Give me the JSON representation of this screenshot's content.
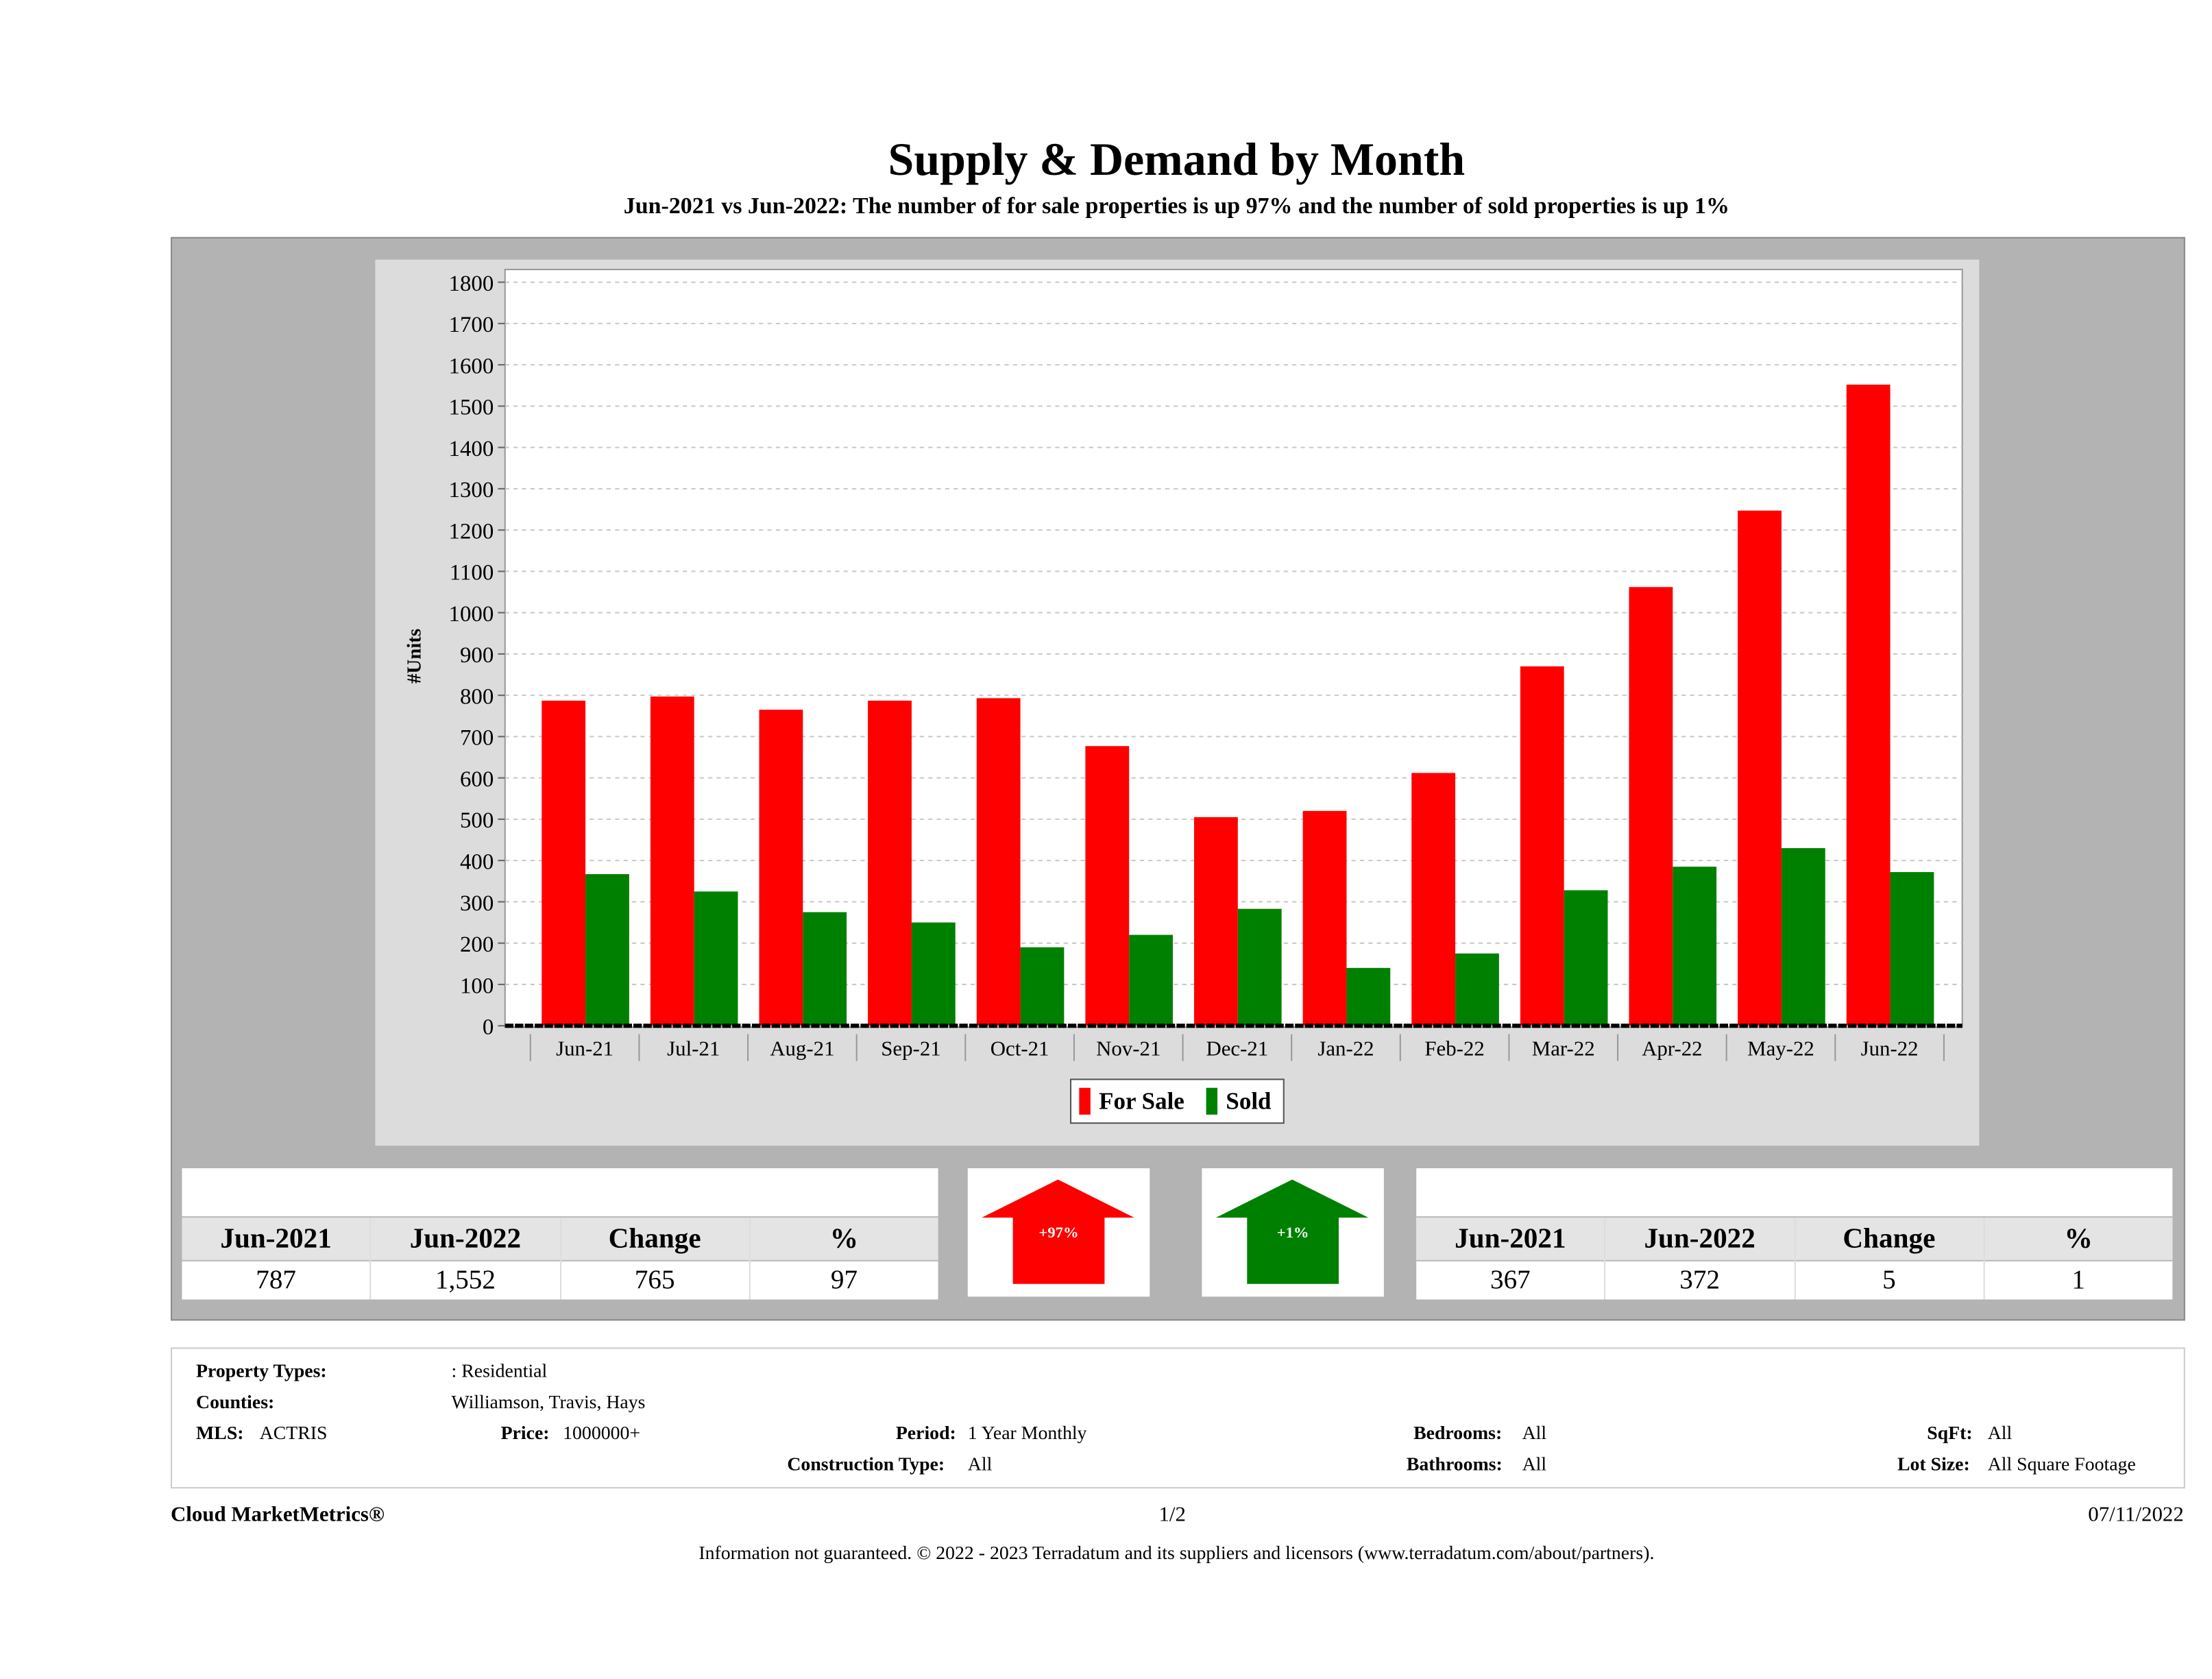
{
  "header": {
    "title": "Supply & Demand by Month",
    "subtitle": "Jun-2021 vs Jun-2022: The number of for sale properties is up 97% and the number of sold properties is up 1%"
  },
  "chart_data": {
    "type": "bar",
    "title": "Supply & Demand by Month",
    "xlabel": "",
    "ylabel": "#Units",
    "ylim": [
      0,
      1800
    ],
    "yticks": [
      0,
      100,
      200,
      300,
      400,
      500,
      600,
      700,
      800,
      900,
      1000,
      1100,
      1200,
      1300,
      1400,
      1500,
      1600,
      1700,
      1800
    ],
    "grid": true,
    "legend_position": "bottom",
    "categories": [
      "Jun-21",
      "Jul-21",
      "Aug-21",
      "Sep-21",
      "Oct-21",
      "Nov-21",
      "Dec-21",
      "Jan-22",
      "Feb-22",
      "Mar-22",
      "Apr-22",
      "May-22",
      "Jun-22"
    ],
    "series": [
      {
        "name": "For Sale",
        "color": "#ff0000",
        "values": [
          787,
          797,
          765,
          787,
          793,
          677,
          505,
          520,
          612,
          870,
          1062,
          1247,
          1552
        ]
      },
      {
        "name": "Sold",
        "color": "#008000",
        "values": [
          367,
          325,
          275,
          250,
          190,
          220,
          283,
          140,
          175,
          328,
          385,
          430,
          372
        ]
      }
    ]
  },
  "for_sale_table": {
    "headers": [
      "Jun-2021",
      "Jun-2022",
      "Change",
      "%"
    ],
    "values": [
      "787",
      "1,552",
      "765",
      "97"
    ]
  },
  "sold_table": {
    "headers": [
      "Jun-2021",
      "Jun-2022",
      "Change",
      "%"
    ],
    "values": [
      "367",
      "372",
      "5",
      "1"
    ]
  },
  "arrows": {
    "for_sale": {
      "label": "+97%",
      "color": "#ff0000"
    },
    "sold": {
      "label": "+1%",
      "color": "#008000"
    }
  },
  "info": {
    "property_types_label": "Property Types:",
    "property_types": ": Residential",
    "counties_label": "Counties:",
    "counties": "Williamson, Travis, Hays",
    "mls_label": "MLS:",
    "mls": "ACTRIS",
    "price_label": "Price:",
    "price": "1000000+",
    "period_label": "Period:",
    "period": "1 Year Monthly",
    "construction_label": "Construction Type:",
    "construction": "All",
    "bedrooms_label": "Bedrooms:",
    "bedrooms": "All",
    "bathrooms_label": "Bathrooms:",
    "bathrooms": "All",
    "sqft_label": "SqFt:",
    "sqft": "All",
    "lotsize_label": "Lot Size:",
    "lotsize": "All Square Footage"
  },
  "footer": {
    "brand": "Cloud MarketMetrics®",
    "page": "1/2",
    "date": "07/11/2022",
    "disclaimer": "Information not guaranteed. © 2022 - 2023 Terradatum and its suppliers and licensors (www.terradatum.com/about/partners)."
  }
}
